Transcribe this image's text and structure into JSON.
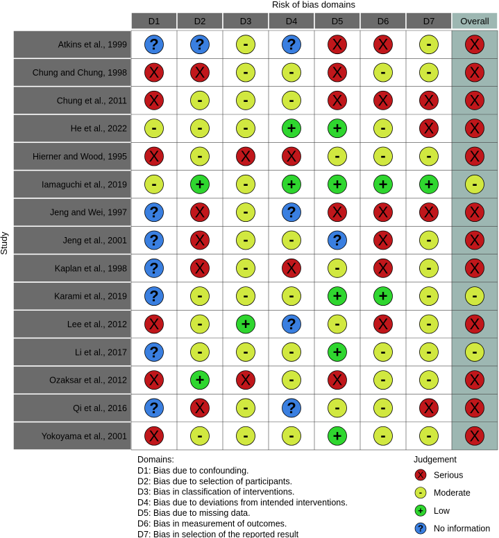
{
  "chart_data": {
    "type": "table",
    "title": "Risk of bias domains",
    "ylabel": "Study",
    "columns": [
      "D1",
      "D2",
      "D3",
      "D4",
      "D5",
      "D6",
      "D7",
      "Overall"
    ],
    "studies": [
      {
        "name": "Atkins et al., 1999",
        "judgements": [
          "N",
          "N",
          "M",
          "N",
          "S",
          "S",
          "M",
          "S"
        ]
      },
      {
        "name": "Chung and Chung, 1998",
        "judgements": [
          "S",
          "S",
          "M",
          "M",
          "S",
          "M",
          "M",
          "S"
        ]
      },
      {
        "name": "Chung et al., 2011",
        "judgements": [
          "S",
          "M",
          "M",
          "M",
          "S",
          "S",
          "S",
          "S"
        ]
      },
      {
        "name": "He et al., 2022",
        "judgements": [
          "M",
          "M",
          "M",
          "L",
          "L",
          "M",
          "S",
          "S"
        ]
      },
      {
        "name": "Hierner and Wood, 1995",
        "judgements": [
          "S",
          "M",
          "S",
          "S",
          "M",
          "M",
          "M",
          "S"
        ]
      },
      {
        "name": "Iamaguchi et al., 2019",
        "judgements": [
          "M",
          "L",
          "M",
          "L",
          "L",
          "L",
          "L",
          "M"
        ]
      },
      {
        "name": "Jeng and Wei, 1997",
        "judgements": [
          "N",
          "S",
          "M",
          "N",
          "S",
          "S",
          "S",
          "S"
        ]
      },
      {
        "name": "Jeng et al., 2001",
        "judgements": [
          "N",
          "S",
          "M",
          "M",
          "N",
          "S",
          "M",
          "S"
        ]
      },
      {
        "name": "Kaplan et al., 1998",
        "judgements": [
          "N",
          "S",
          "M",
          "S",
          "M",
          "S",
          "M",
          "S"
        ]
      },
      {
        "name": "Karami et al., 2019",
        "judgements": [
          "N",
          "M",
          "M",
          "M",
          "L",
          "L",
          "M",
          "M"
        ]
      },
      {
        "name": "Lee et al., 2012",
        "judgements": [
          "S",
          "M",
          "L",
          "N",
          "M",
          "S",
          "M",
          "S"
        ]
      },
      {
        "name": "Li et al., 2017",
        "judgements": [
          "N",
          "M",
          "M",
          "M",
          "L",
          "M",
          "M",
          "M"
        ]
      },
      {
        "name": "Ozaksar et al., 2012",
        "judgements": [
          "S",
          "L",
          "S",
          "M",
          "S",
          "M",
          "M",
          "S"
        ]
      },
      {
        "name": "Qi et al., 2016",
        "judgements": [
          "N",
          "S",
          "M",
          "N",
          "M",
          "M",
          "S",
          "S"
        ]
      },
      {
        "name": "Yokoyama et al., 2001",
        "judgements": [
          "S",
          "M",
          "M",
          "M",
          "L",
          "M",
          "M",
          "S"
        ]
      }
    ],
    "domains_title": "Domains:",
    "domains": [
      "D1: Bias due to confounding.",
      "D2: Bias due to selection of participants.",
      "D3: Bias in classification of interventions.",
      "D4: Bias due to deviations from intended interventions.",
      "D5: Bias due to missing data.",
      "D6: Bias in measurement of outcomes.",
      "D7: Bias in selection of the reported result"
    ],
    "legend_title": "Judgement",
    "legend": [
      {
        "key": "S",
        "label": "Serious"
      },
      {
        "key": "M",
        "label": "Moderate"
      },
      {
        "key": "L",
        "label": "Low"
      },
      {
        "key": "N",
        "label": "No information"
      }
    ],
    "judgement_styles": {
      "S": {
        "color": "#c0171b",
        "symbol": "X"
      },
      "M": {
        "color": "#d1e840",
        "symbol": "-"
      },
      "L": {
        "color": "#2fd62f",
        "symbol": "+"
      },
      "N": {
        "color": "#3a7fe0",
        "symbol": "?"
      }
    },
    "colors": {
      "header": "#6b6b6b",
      "study_cell": "#6b6b6b",
      "overall_column": "#9db7b2",
      "grid": "#ffffff"
    }
  }
}
